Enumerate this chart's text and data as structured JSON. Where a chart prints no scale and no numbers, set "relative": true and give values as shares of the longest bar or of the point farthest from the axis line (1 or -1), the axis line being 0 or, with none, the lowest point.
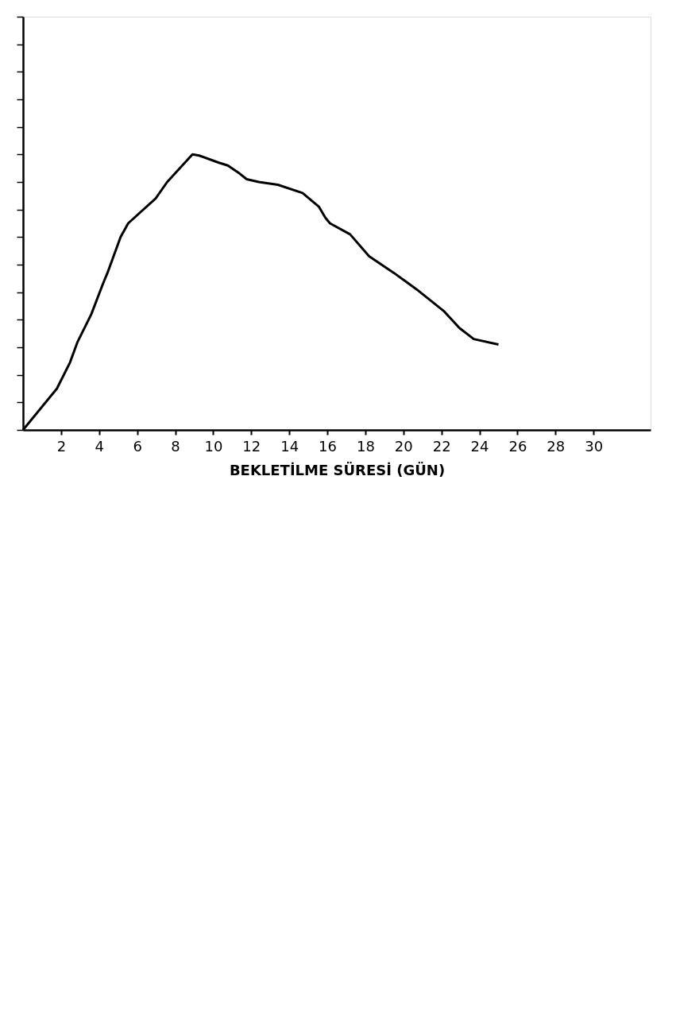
{
  "chart_data": {
    "type": "line",
    "xlabel": "BEKLETİLME SÜRESİ (GÜN)",
    "relative": true,
    "grid": false,
    "xlim": [
      0,
      33
    ],
    "xticks": [
      2,
      4,
      6,
      8,
      10,
      12,
      14,
      16,
      18,
      20,
      22,
      24,
      26,
      28,
      30
    ],
    "x": [
      0,
      1.78,
      2.47,
      2.87,
      3.59,
      4.2,
      4.44,
      5.13,
      5.53,
      6.97,
      7.58,
      8.91,
      9.26,
      10.3,
      10.77,
      11.4,
      11.76,
      12.4,
      13.4,
      14.7,
      15.56,
      15.9,
      16.14,
      17.2,
      18.2,
      19.5,
      20.7,
      22.15,
      22.95,
      23.7,
      25.0
    ],
    "series": [
      {
        "color": "#000000",
        "values": [
          0,
          0.15,
          0.245,
          0.32,
          0.42,
          0.53,
          0.57,
          0.7,
          0.75,
          0.84,
          0.9,
          1.0,
          0.996,
          0.97,
          0.96,
          0.93,
          0.91,
          0.9,
          0.89,
          0.86,
          0.81,
          0.77,
          0.75,
          0.71,
          0.63,
          0.57,
          0.51,
          0.43,
          0.37,
          0.33,
          0.31
        ]
      }
    ]
  }
}
